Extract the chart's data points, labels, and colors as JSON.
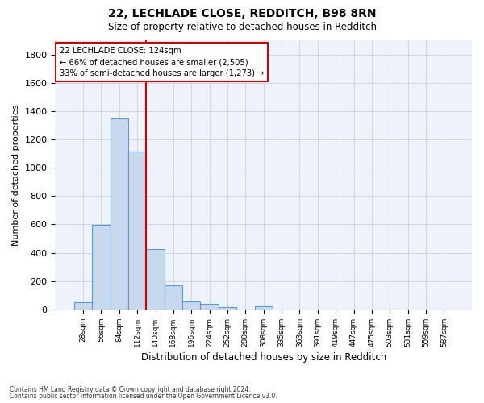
{
  "title_line1": "22, LECHLADE CLOSE, REDDITCH, B98 8RN",
  "title_line2": "Size of property relative to detached houses in Redditch",
  "xlabel": "Distribution of detached houses by size in Redditch",
  "ylabel": "Number of detached properties",
  "bin_labels": [
    "28sqm",
    "56sqm",
    "84sqm",
    "112sqm",
    "140sqm",
    "168sqm",
    "196sqm",
    "224sqm",
    "252sqm",
    "280sqm",
    "308sqm",
    "335sqm",
    "363sqm",
    "391sqm",
    "419sqm",
    "447sqm",
    "475sqm",
    "503sqm",
    "531sqm",
    "559sqm",
    "587sqm"
  ],
  "bar_values": [
    50,
    595,
    1350,
    1115,
    425,
    170,
    58,
    37,
    15,
    0,
    20,
    0,
    0,
    0,
    0,
    0,
    0,
    0,
    0,
    0,
    0
  ],
  "bar_color": "#c8d9ef",
  "bar_edge_color": "#5b9bd5",
  "vline_color": "#cc0000",
  "annotation_text": "22 LECHLADE CLOSE: 124sqm\n← 66% of detached houses are smaller (2,505)\n33% of semi-detached houses are larger (1,273) →",
  "annotation_box_color": "#cc0000",
  "ylim": [
    0,
    1900
  ],
  "yticks": [
    0,
    200,
    400,
    600,
    800,
    1000,
    1200,
    1400,
    1600,
    1800
  ],
  "grid_color": "#c8d0e0",
  "bg_color": "#eef2fa",
  "footer_line1": "Contains HM Land Registry data © Crown copyright and database right 2024.",
  "footer_line2": "Contains public sector information licensed under the Open Government Licence v3.0."
}
